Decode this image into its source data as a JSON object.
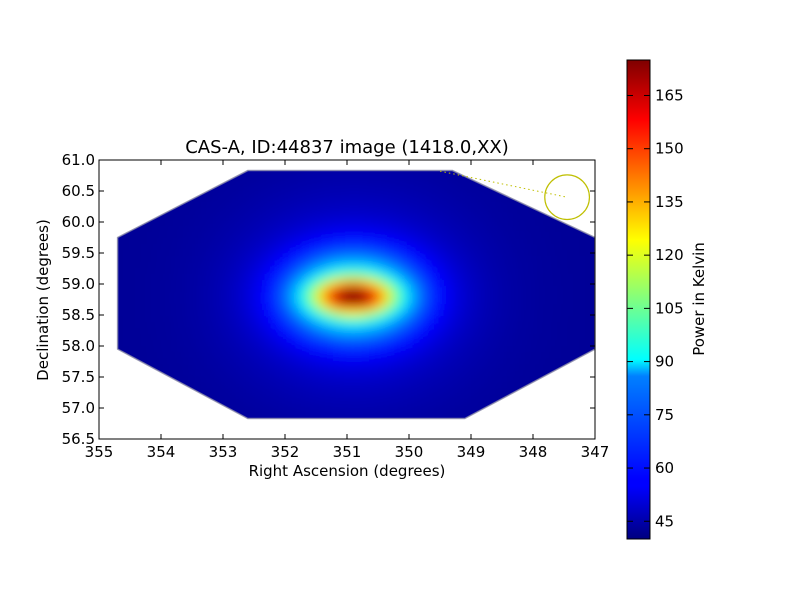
{
  "chart_data": {
    "type": "heatmap",
    "title": "CAS-A, ID:44837 image (1418.0,XX)",
    "xlabel": "Right Ascension (degrees)",
    "ylabel": "Declination (degrees)",
    "xlim": [
      355,
      347
    ],
    "ylim": [
      56.5,
      61.0
    ],
    "x_ticks": [
      "355",
      "354",
      "353",
      "352",
      "351",
      "350",
      "349",
      "348",
      "347"
    ],
    "y_ticks": [
      "56.5",
      "57.0",
      "57.5",
      "58.0",
      "58.5",
      "59.0",
      "59.5",
      "60.0",
      "60.5",
      "61.0"
    ],
    "colorbar": {
      "label": "Power in Kelvin",
      "range": [
        40,
        175
      ],
      "ticks": [
        "45",
        "60",
        "75",
        "90",
        "105",
        "120",
        "135",
        "150",
        "165"
      ],
      "colormap": "jet"
    },
    "peak": {
      "ra": 350.9,
      "dec": 58.8,
      "value": 175
    },
    "background_value": 43,
    "footprint_polygon": [
      [
        354.7,
        59.75
      ],
      [
        352.6,
        60.83
      ],
      [
        349.3,
        60.83
      ],
      [
        347.0,
        59.75
      ],
      [
        347.0,
        57.95
      ],
      [
        349.1,
        56.83
      ],
      [
        352.6,
        56.83
      ],
      [
        354.7,
        57.95
      ]
    ],
    "beam_circle": {
      "ra": 347.45,
      "dec": 60.4,
      "radius_deg": 0.36,
      "color": "#bfbf00"
    },
    "pointer_line": [
      [
        349.5,
        60.82
      ],
      [
        347.45,
        60.4
      ]
    ],
    "grid": false,
    "legend": "none"
  }
}
